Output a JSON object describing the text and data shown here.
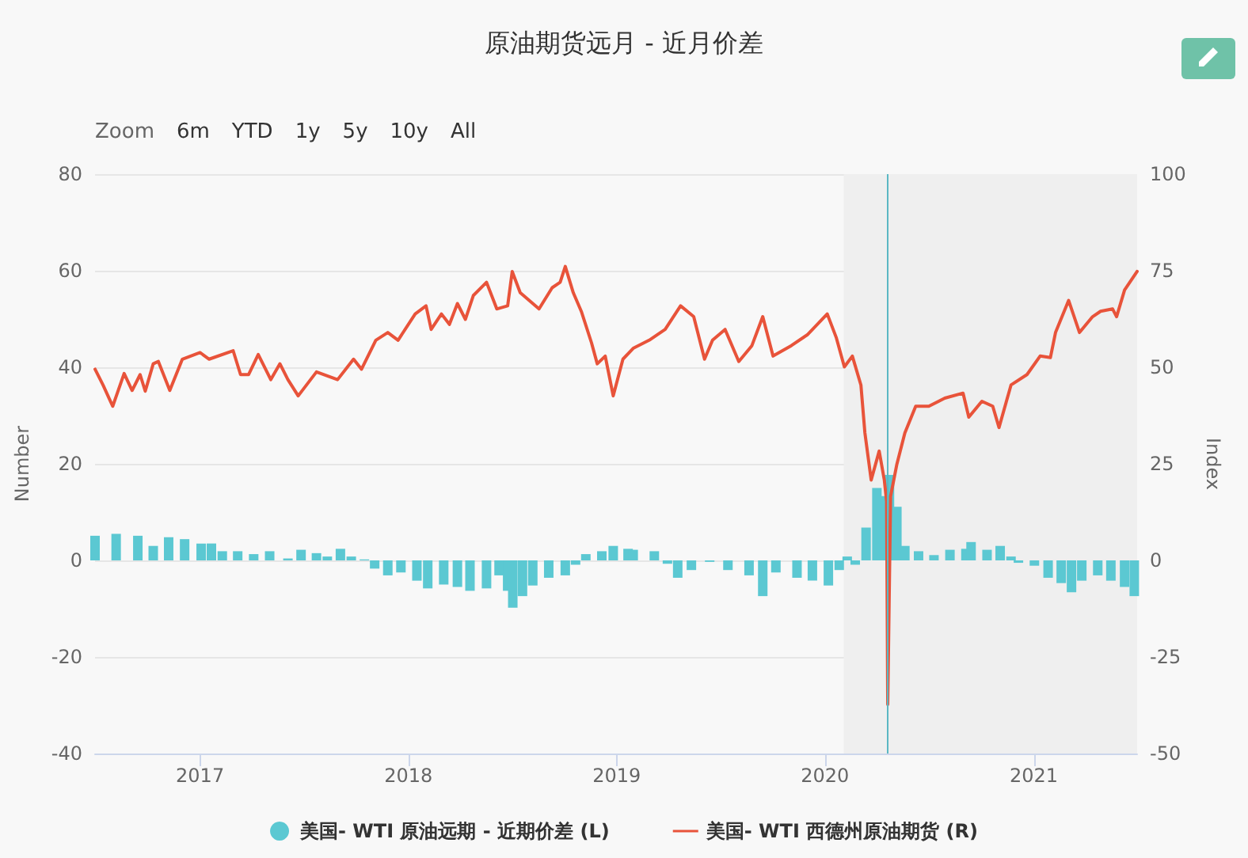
{
  "chart_data": {
    "type": "bar",
    "title": "原油期货远月 - 近月价差",
    "xlabel": null,
    "ylabel": "Number",
    "y2label": "Index",
    "annotations": [
      "Zoom",
      "6m",
      "YTD",
      "1y",
      "5y",
      "10y",
      "All"
    ],
    "xlim": [
      "2016-07-01",
      "2021-07-01"
    ],
    "xticks": [
      "2017",
      "2018",
      "2019",
      "2020",
      "2021"
    ],
    "ylim": [
      -40,
      80
    ],
    "yticks": [
      -40,
      -20,
      0,
      20,
      40,
      60,
      80
    ],
    "y2lim": [
      -50,
      100
    ],
    "y2ticks": [
      -50,
      -25,
      0,
      25,
      50,
      75,
      100
    ],
    "grid": "y",
    "legend": "bottom",
    "marker": "none",
    "line_style": "solid",
    "bands": [
      {
        "axis": "x",
        "from": "2020-02-03",
        "to": "2021-07-01",
        "color": "#efefef"
      }
    ],
    "ref_lines": [
      {
        "axis": "x",
        "value": "2020-04-20",
        "color": "#5bb8c4"
      }
    ],
    "series": [
      {
        "name": "美国- WTI 原油远期 - 近期价差 (L)",
        "color": "#5bc8d2",
        "x": [
          "2016-07-01",
          "2016-08-07",
          "2016-09-14",
          "2016-10-11",
          "2016-11-07",
          "2016-12-05",
          "2017-01-03",
          "2017-01-21",
          "2017-02-09",
          "2017-03-08",
          "2017-04-05",
          "2017-05-03",
          "2017-06-04",
          "2017-06-27",
          "2017-07-24",
          "2017-08-12",
          "2017-09-04",
          "2017-09-23",
          "2017-10-16",
          "2017-11-03",
          "2017-11-26",
          "2017-12-19",
          "2018-01-16",
          "2018-02-04",
          "2018-03-04",
          "2018-03-28",
          "2018-04-19",
          "2018-05-18",
          "2018-06-09",
          "2018-06-24",
          "2018-07-03",
          "2018-07-20",
          "2018-08-07",
          "2018-09-04",
          "2018-10-03",
          "2018-10-21",
          "2018-11-08",
          "2018-12-06",
          "2018-12-26",
          "2019-01-21",
          "2019-01-30",
          "2019-03-08",
          "2019-03-31",
          "2019-04-18",
          "2019-05-12",
          "2019-06-13",
          "2019-07-15",
          "2019-08-21",
          "2019-09-14",
          "2019-10-07",
          "2019-11-13",
          "2019-12-10",
          "2020-01-07",
          "2020-01-26",
          "2020-02-09",
          "2020-02-23",
          "2020-03-13",
          "2020-04-01",
          "2020-04-10",
          "2020-04-23",
          "2020-05-06",
          "2020-05-20",
          "2020-06-13",
          "2020-07-10",
          "2020-08-07",
          "2020-09-04",
          "2020-09-13",
          "2020-10-11",
          "2020-11-03",
          "2020-11-22",
          "2020-12-05",
          "2021-01-02",
          "2021-01-26",
          "2021-02-18",
          "2021-03-08",
          "2021-03-26",
          "2021-04-23",
          "2021-05-16",
          "2021-06-09",
          "2021-06-26"
        ],
        "values": [
          5.1,
          5.5,
          5.1,
          3,
          4.8,
          4.4,
          3.5,
          3.5,
          1.9,
          1.9,
          1.3,
          1.9,
          0.4,
          2.2,
          1.5,
          0.8,
          2.4,
          0.8,
          0.2,
          -1.7,
          -3.1,
          -2.5,
          -4.2,
          -5.8,
          -5,
          -5.5,
          -6.3,
          -5.8,
          -3.1,
          -6.3,
          -9.8,
          -7.4,
          -5.2,
          -3.6,
          -3.1,
          -0.9,
          1.3,
          1.9,
          3,
          2.4,
          2.2,
          1.9,
          -0.7,
          -3.6,
          -2,
          -0.3,
          -2,
          -3.1,
          -7.4,
          -2.5,
          -3.6,
          -4.2,
          -5.2,
          -2,
          0.8,
          -0.9,
          6.8,
          15,
          13.3,
          17.7,
          11.1,
          3,
          1.9,
          1.1,
          2.2,
          2.4,
          3.8,
          2.2,
          3,
          0.8,
          -0.5,
          -1.1,
          -3.6,
          -4.7,
          -6.6,
          -4.2,
          -3.1,
          -4.2,
          -5.5,
          -7.4
        ]
      },
      {
        "name": "美国- WTI 西德州原油期货 (R)",
        "type": "line",
        "axis": "y2",
        "color": "#e8533a",
        "x": [
          "2016-07-01",
          "2016-07-15",
          "2016-08-01",
          "2016-08-21",
          "2016-09-04",
          "2016-09-18",
          "2016-09-27",
          "2016-10-11",
          "2016-10-20",
          "2016-11-09",
          "2016-12-01",
          "2017-01-01",
          "2017-01-17",
          "2017-02-28",
          "2017-03-13",
          "2017-03-27",
          "2017-04-13",
          "2017-05-05",
          "2017-05-21",
          "2017-06-04",
          "2017-06-22",
          "2017-07-24",
          "2017-08-30",
          "2017-09-27",
          "2017-10-11",
          "2017-11-05",
          "2017-11-26",
          "2017-12-14",
          "2018-01-13",
          "2018-02-01",
          "2018-02-10",
          "2018-02-28",
          "2018-03-14",
          "2018-03-28",
          "2018-04-11",
          "2018-04-25",
          "2018-05-18",
          "2018-06-05",
          "2018-06-24",
          "2018-07-02",
          "2018-07-16",
          "2018-08-18",
          "2018-09-10",
          "2018-09-24",
          "2018-10-03",
          "2018-10-17",
          "2018-10-31",
          "2018-11-18",
          "2018-11-28",
          "2018-12-12",
          "2018-12-26",
          "2019-01-12",
          "2019-01-30",
          "2019-02-27",
          "2019-03-27",
          "2019-04-23",
          "2019-05-16",
          "2019-06-04",
          "2019-06-18",
          "2019-07-10",
          "2019-08-03",
          "2019-08-26",
          "2019-09-14",
          "2019-10-02",
          "2019-11-03",
          "2019-12-01",
          "2020-01-05",
          "2020-01-21",
          "2020-02-04",
          "2020-02-18",
          "2020-03-04",
          "2020-03-11",
          "2020-03-22",
          "2020-04-05",
          "2020-04-14",
          "2020-04-18",
          "2020-04-20",
          "2020-04-25",
          "2020-05-06",
          "2020-05-20",
          "2020-06-08",
          "2020-07-01",
          "2020-07-29",
          "2020-08-30",
          "2020-09-09",
          "2020-10-02",
          "2020-10-21",
          "2020-11-01",
          "2020-11-22",
          "2020-12-20",
          "2021-01-12",
          "2021-01-30",
          "2021-02-08",
          "2021-03-03",
          "2021-03-22",
          "2021-04-14",
          "2021-04-28",
          "2021-05-19",
          "2021-05-26",
          "2021-06-09",
          "2021-07-01"
        ],
        "values": [
          49.5,
          45.4,
          39.9,
          48.4,
          44,
          48.1,
          43.8,
          50.9,
          51.5,
          44,
          52.1,
          53.8,
          52.1,
          54.3,
          48.1,
          48.1,
          53.3,
          46.8,
          50.9,
          46.8,
          42.6,
          48.8,
          46.8,
          52.1,
          49.5,
          57,
          59,
          57,
          63.8,
          65.9,
          59.8,
          63.8,
          61.1,
          66.5,
          62.4,
          68.6,
          72,
          65.1,
          65.9,
          74.8,
          69.3,
          65.1,
          70.6,
          72,
          76.1,
          69.3,
          64.5,
          56.3,
          50.9,
          52.9,
          42.6,
          52.1,
          54.9,
          57,
          59.8,
          65.9,
          63.1,
          52.1,
          57,
          59.8,
          51.5,
          55.6,
          63.1,
          52.9,
          55.6,
          58.4,
          63.8,
          57.6,
          50.1,
          52.9,
          45.4,
          33,
          20.8,
          28.3,
          20.8,
          15.3,
          -37.3,
          16.6,
          24.9,
          33,
          39.9,
          39.9,
          42,
          43.3,
          37.1,
          41.2,
          39.9,
          34.4,
          45.4,
          48.1,
          52.9,
          52.5,
          59,
          67.3,
          59,
          63.1,
          64.5,
          65.1,
          63.1,
          70,
          74.8
        ]
      }
    ]
  }
}
